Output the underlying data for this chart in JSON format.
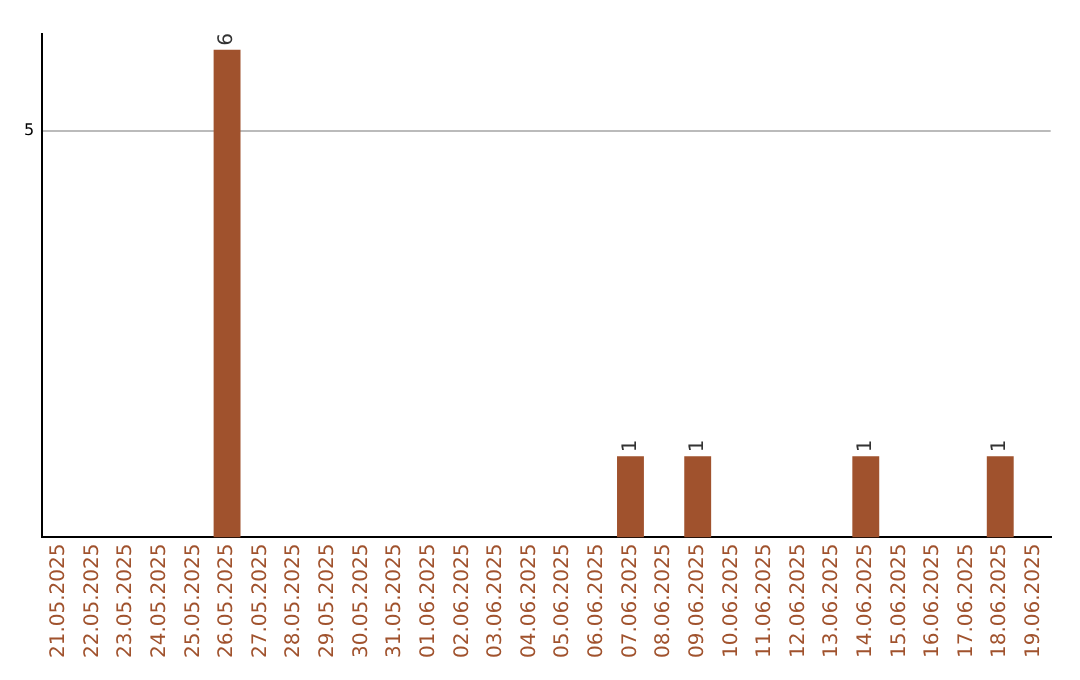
{
  "chart_data": {
    "type": "bar",
    "categories": [
      "21.05.2025",
      "22.05.2025",
      "23.05.2025",
      "24.05.2025",
      "25.05.2025",
      "26.05.2025",
      "27.05.2025",
      "28.05.2025",
      "29.05.2025",
      "30.05.2025",
      "31.05.2025",
      "01.06.2025",
      "02.06.2025",
      "03.06.2025",
      "04.06.2025",
      "05.06.2025",
      "06.06.2025",
      "07.06.2025",
      "08.06.2025",
      "09.06.2025",
      "10.06.2025",
      "11.06.2025",
      "12.06.2025",
      "13.06.2025",
      "14.06.2025",
      "15.06.2025",
      "16.06.2025",
      "17.06.2025",
      "18.06.2025",
      "19.06.2025"
    ],
    "values": [
      0,
      0,
      0,
      0,
      0,
      6,
      0,
      0,
      0,
      0,
      0,
      0,
      0,
      0,
      0,
      0,
      0,
      1,
      0,
      1,
      0,
      0,
      0,
      0,
      1,
      0,
      0,
      0,
      1,
      0
    ],
    "color": "#a0522d",
    "ylim": [
      0,
      6.2
    ],
    "yticks": [
      5
    ],
    "grid": "y",
    "value_labels": [
      null,
      null,
      null,
      null,
      null,
      "6",
      null,
      null,
      null,
      null,
      null,
      null,
      null,
      null,
      null,
      null,
      null,
      "1",
      null,
      "1",
      null,
      null,
      null,
      null,
      "1",
      null,
      null,
      null,
      "1",
      null
    ],
    "legend": false
  }
}
